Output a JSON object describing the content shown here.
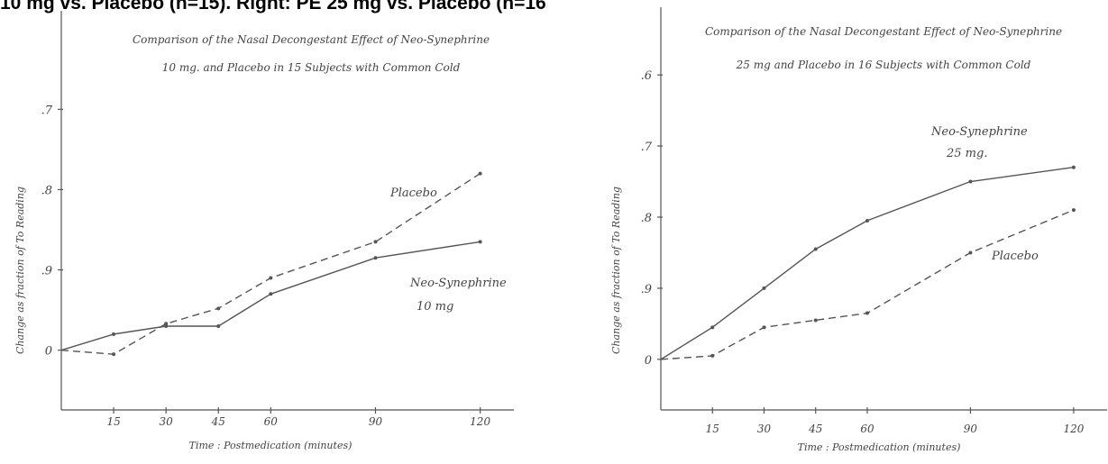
{
  "caption": "10 mg vs. Placebo (n=15). Right: PE 25 mg vs. Placebo (n=16)",
  "chart_data": [
    {
      "type": "line",
      "title": "Comparison of the Nasal Decongestant Effect of Neo-Synephrine",
      "subtitle": "10 mg. and Placebo in 15 Subjects with Common Cold",
      "xlabel": "Time : Postmedication (minutes)",
      "ylabel": "Change as fraction of To Reading",
      "x_ticks": [
        15,
        30,
        45,
        60,
        90,
        120
      ],
      "y_ticks": [
        {
          "value": 0.7,
          "label": ".7"
        },
        {
          "value": 0.8,
          "label": ".8"
        },
        {
          "value": 0.9,
          "label": ".9"
        },
        {
          "value": 1.0,
          "label": "0"
        }
      ],
      "y_axis": "descending",
      "xlim": [
        0,
        125
      ],
      "ylim": [
        0.62,
        1.08
      ],
      "series": [
        {
          "name": "Placebo",
          "style": "dashed",
          "x": [
            0,
            15,
            30,
            45,
            60,
            90,
            120
          ],
          "y": [
            1.0,
            1.005,
            0.967,
            0.948,
            0.91,
            0.865,
            0.78
          ]
        },
        {
          "name": "Neo-Synephrine 10 mg",
          "style": "solid",
          "x": [
            0,
            15,
            30,
            45,
            60,
            90,
            120
          ],
          "y": [
            1.0,
            0.98,
            0.97,
            0.97,
            0.93,
            0.885,
            0.865
          ]
        }
      ]
    },
    {
      "type": "line",
      "title": "Comparison of the Nasal Decongestant Effect of Neo-Synephrine",
      "subtitle": "25 mg and Placebo in 16 Subjects with Common Cold",
      "xlabel": "Time : Postmedication (minutes)",
      "ylabel": "Change as fraction of To Reading",
      "x_ticks": [
        15,
        30,
        45,
        60,
        90,
        120
      ],
      "y_ticks": [
        {
          "value": 0.6,
          "label": ".6"
        },
        {
          "value": 0.7,
          "label": ".7"
        },
        {
          "value": 0.8,
          "label": ".8"
        },
        {
          "value": 0.9,
          "label": ".9"
        },
        {
          "value": 1.0,
          "label": "0"
        }
      ],
      "y_axis": "descending",
      "xlim": [
        0,
        125
      ],
      "ylim": [
        0.52,
        1.08
      ],
      "series": [
        {
          "name": "Neo-Synephrine 25 mg.",
          "style": "solid",
          "x": [
            0,
            15,
            30,
            45,
            60,
            90,
            120
          ],
          "y": [
            1.0,
            0.955,
            0.9,
            0.845,
            0.805,
            0.75,
            0.73
          ]
        },
        {
          "name": "Placebo",
          "style": "dashed",
          "x": [
            0,
            15,
            30,
            45,
            60,
            90,
            120
          ],
          "y": [
            1.0,
            0.995,
            0.955,
            0.945,
            0.935,
            0.85,
            0.79
          ]
        }
      ]
    }
  ]
}
